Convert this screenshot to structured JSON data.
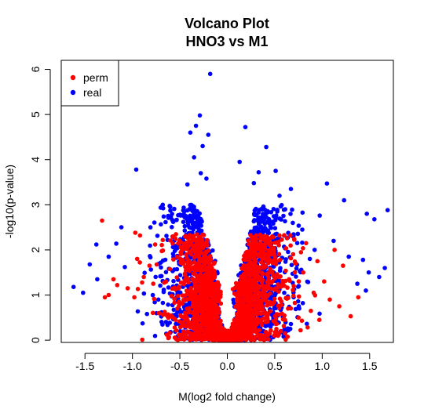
{
  "chart_data": {
    "type": "scatter",
    "title": "Volcano Plot",
    "subtitle": "HNO3 vs M1",
    "xlabel": "M(log2 fold change)",
    "ylabel": "-log10(p-value)",
    "xlim": [
      -1.75,
      1.75
    ],
    "ylim": [
      -0.05,
      6.2
    ],
    "x_ticks": [
      -1.5,
      -1.0,
      -0.5,
      0.0,
      0.5,
      1.0,
      1.5
    ],
    "x_tick_labels": [
      "-1.5",
      "-1.0",
      "-0.5",
      "0.0",
      "0.5",
      "1.0",
      "1.5"
    ],
    "y_ticks": [
      0,
      1,
      2,
      3,
      4,
      5,
      6
    ],
    "y_tick_labels": [
      "0",
      "1",
      "2",
      "3",
      "4",
      "5",
      "6"
    ],
    "grid": false,
    "legend_position": "top-left",
    "series": [
      {
        "name": "perm",
        "color": "#ff0000",
        "outliers": [
          [
            -1.32,
            2.65
          ],
          [
            -0.97,
            2.38
          ],
          [
            -0.92,
            2.32
          ],
          [
            -1.2,
            1.35
          ],
          [
            -1.16,
            1.22
          ],
          [
            -1.25,
            1.0
          ],
          [
            -1.29,
            0.95
          ],
          [
            -1.05,
            1.15
          ],
          [
            -0.95,
            1.8
          ],
          [
            -0.88,
            1.4
          ],
          [
            -0.82,
            1.65
          ],
          [
            -0.76,
            2.12
          ],
          [
            -0.78,
            1.25
          ],
          [
            -0.98,
            0.95
          ],
          [
            -0.72,
            0.6
          ],
          [
            1.13,
            2.0
          ],
          [
            1.22,
            1.65
          ],
          [
            1.02,
            1.3
          ],
          [
            0.95,
            1.75
          ],
          [
            1.3,
            0.53
          ],
          [
            1.38,
            0.95
          ],
          [
            0.83,
            2.15
          ],
          [
            1.08,
            0.9
          ],
          [
            1.18,
            0.75
          ],
          [
            0.91,
            1.05
          ],
          [
            0.8,
            1.5
          ],
          [
            0.72,
            1.7
          ],
          [
            0.88,
            0.65
          ],
          [
            0.97,
            0.45
          ],
          [
            0.7,
            1.2
          ]
        ]
      },
      {
        "name": "real",
        "color": "#0000ff",
        "outliers": [
          [
            -0.18,
            5.9
          ],
          [
            -0.29,
            4.98
          ],
          [
            -0.33,
            4.75
          ],
          [
            -0.39,
            4.6
          ],
          [
            -0.2,
            4.55
          ],
          [
            -0.26,
            4.3
          ],
          [
            -0.35,
            4.05
          ],
          [
            -0.28,
            3.7
          ],
          [
            -0.96,
            3.78
          ],
          [
            -0.42,
            3.45
          ],
          [
            -0.22,
            3.58
          ],
          [
            0.19,
            4.72
          ],
          [
            0.41,
            4.28
          ],
          [
            0.13,
            3.95
          ],
          [
            0.33,
            3.72
          ],
          [
            0.51,
            3.75
          ],
          [
            0.67,
            3.35
          ],
          [
            0.55,
            3.2
          ],
          [
            0.28,
            3.48
          ],
          [
            1.05,
            3.47
          ],
          [
            1.23,
            3.1
          ],
          [
            1.55,
            2.68
          ],
          [
            1.69,
            2.88
          ],
          [
            1.47,
            2.8
          ],
          [
            1.66,
            1.6
          ],
          [
            1.43,
            1.78
          ],
          [
            1.49,
            1.5
          ],
          [
            1.6,
            1.4
          ],
          [
            1.37,
            1.25
          ],
          [
            1.28,
            1.85
          ],
          [
            1.46,
            1.1
          ],
          [
            1.12,
            2.2
          ],
          [
            -1.62,
            1.18
          ],
          [
            -1.45,
            1.68
          ],
          [
            -1.37,
            1.35
          ],
          [
            -1.52,
            1.05
          ],
          [
            -1.25,
            1.85
          ],
          [
            -1.38,
            2.12
          ],
          [
            -1.17,
            2.14
          ],
          [
            -1.08,
            1.62
          ],
          [
            -0.68,
            3.0
          ],
          [
            -0.57,
            2.62
          ],
          [
            -0.63,
            2.22
          ],
          [
            -0.5,
            2.78
          ],
          [
            -0.81,
            2.5
          ],
          [
            0.79,
            2.45
          ],
          [
            0.69,
            2.6
          ],
          [
            0.92,
            2.0
          ],
          [
            0.61,
            2.9
          ],
          [
            0.87,
            1.8
          ]
        ]
      }
    ]
  }
}
